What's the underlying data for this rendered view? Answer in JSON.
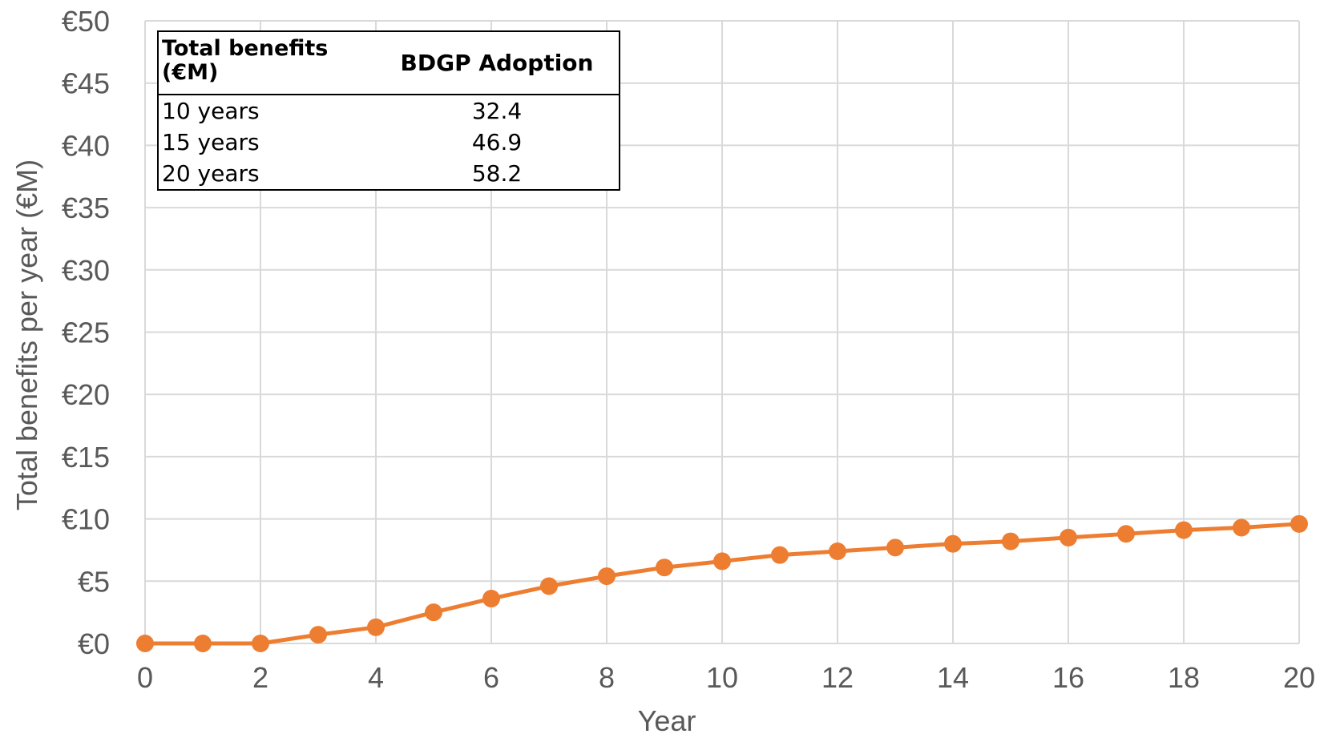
{
  "chart_data": {
    "type": "line",
    "xlabel": "Year",
    "ylabel": "Total benefits per year (€M)",
    "xlim": [
      0,
      20
    ],
    "ylim": [
      0,
      50
    ],
    "x_ticks": [
      "0",
      "2",
      "4",
      "6",
      "8",
      "10",
      "12",
      "14",
      "16",
      "18",
      "20"
    ],
    "y_ticks": [
      "€0",
      "€5",
      "€10",
      "€15",
      "€20",
      "€25",
      "€30",
      "€35",
      "€40",
      "€45",
      "€50"
    ],
    "grid": true,
    "series": [
      {
        "color": "#ED7D31",
        "x": [
          0,
          1,
          2,
          3,
          4,
          5,
          6,
          7,
          8,
          9,
          10,
          11,
          12,
          13,
          14,
          15,
          16,
          17,
          18,
          19,
          20
        ],
        "values": [
          0,
          0,
          0,
          0.7,
          1.3,
          2.5,
          3.6,
          4.6,
          5.4,
          6.1,
          6.6,
          7.1,
          7.4,
          7.7,
          8.0,
          8.2,
          8.5,
          8.8,
          9.1,
          9.3,
          9.6
        ]
      }
    ],
    "table": {
      "headers": [
        "Total benefits (€M)",
        "BDGP Adoption"
      ],
      "rows": [
        [
          "10 years",
          "32.4"
        ],
        [
          "15 years",
          "46.9"
        ],
        [
          "20 years",
          "58.2"
        ]
      ]
    }
  }
}
